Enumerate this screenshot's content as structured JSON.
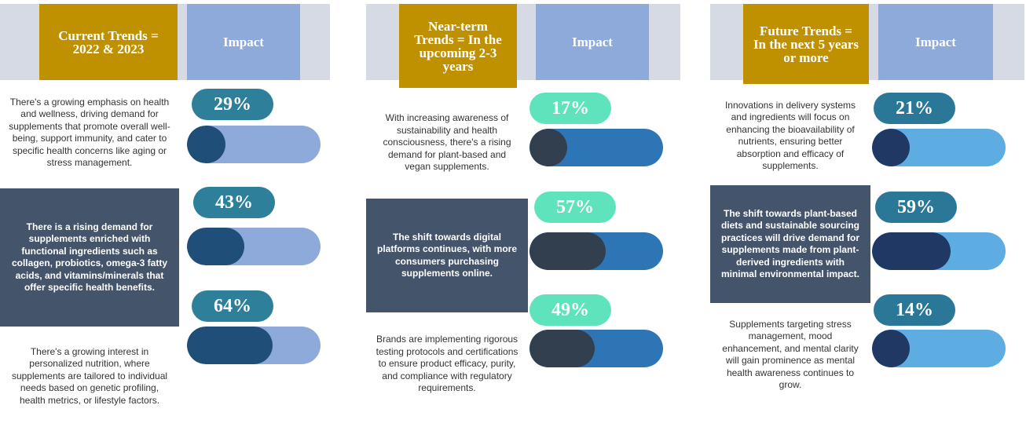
{
  "colors": {
    "header_gold": "#bf9000",
    "header_blue": "#8eaadb",
    "header_bg": "#d6dae4",
    "dark_box": "#44546a",
    "pill_current": "#2e7f99",
    "pill_nearterm": "#5fe3bd",
    "pill_future": "#2b7797"
  },
  "panels": [
    {
      "title": "Current Trends = 2022 & 2023",
      "impact_label": "Impact",
      "pill_color": "#2e7f99",
      "track_color": "#8eaadb",
      "fill_color": "#1f4e79",
      "items": [
        {
          "text": "There's a growing emphasis on health and wellness, driving demand for supplements that promote overall well-being, support immunity, and cater to specific health concerns like aging or stress management.",
          "percent": "29%",
          "value": 29,
          "dark": false
        },
        {
          "text": "There is a rising demand for supplements enriched with functional ingredients such as collagen, probiotics, omega-3 fatty acids, and vitamins/minerals that offer specific health benefits.",
          "percent": "43%",
          "value": 43,
          "dark": true
        },
        {
          "text": "There's a growing interest in personalized nutrition, where supplements are tailored to individual needs based on genetic profiling, health metrics, or lifestyle factors.",
          "percent": "64%",
          "value": 64,
          "dark": false
        }
      ]
    },
    {
      "title": "Near-term Trends = In the upcoming 2-3 years",
      "impact_label": "Impact",
      "pill_color": "#5fe3bd",
      "track_color": "#2e75b6",
      "fill_color": "#323f4f",
      "items": [
        {
          "text": "With increasing awareness of sustainability and health consciousness, there's a rising demand for plant-based and vegan supplements.",
          "percent": "17%",
          "value": 17,
          "dark": false
        },
        {
          "text": "The shift towards digital platforms continues, with more consumers purchasing supplements online.",
          "percent": "57%",
          "value": 57,
          "dark": true
        },
        {
          "text": "Brands are implementing rigorous testing protocols and certifications to ensure product efficacy, purity, and compliance with regulatory requirements.",
          "percent": "49%",
          "value": 49,
          "dark": false
        }
      ]
    },
    {
      "title": "Future Trends = In the next 5 years or more",
      "impact_label": "Impact",
      "pill_color": "#2b7797",
      "track_color": "#5dade2",
      "fill_color": "#203864",
      "items": [
        {
          "text": "Innovations in delivery systems and ingredients will focus on enhancing the bioavailability of nutrients, ensuring better absorption and efficacy of supplements.",
          "percent": "21%",
          "value": 21,
          "dark": false
        },
        {
          "text": "The shift towards plant-based diets and sustainable sourcing practices will drive demand for supplements made from plant-derived ingredients with minimal environmental impact.",
          "percent": "59%",
          "value": 59,
          "dark": true
        },
        {
          "text": "Supplements targeting stress management, mood enhancement, and mental clarity will gain prominence as mental health awareness continues to grow.",
          "percent": "14%",
          "value": 14,
          "dark": false
        }
      ]
    }
  ],
  "chart_data": [
    {
      "type": "bar",
      "categories": [
        "29%",
        "43%",
        "64%"
      ],
      "values": [
        29,
        43,
        64
      ],
      "title": "Current Trends = 2022 & 2023",
      "ylim": [
        0,
        100
      ]
    },
    {
      "type": "bar",
      "categories": [
        "17%",
        "57%",
        "49%"
      ],
      "values": [
        17,
        57,
        49
      ],
      "title": "Near-term Trends = In the upcoming 2-3 years",
      "ylim": [
        0,
        100
      ]
    },
    {
      "type": "bar",
      "categories": [
        "21%",
        "59%",
        "14%"
      ],
      "values": [
        21,
        59,
        14
      ],
      "title": "Future Trends = In the next 5 years or more",
      "ylim": [
        0,
        100
      ]
    }
  ]
}
